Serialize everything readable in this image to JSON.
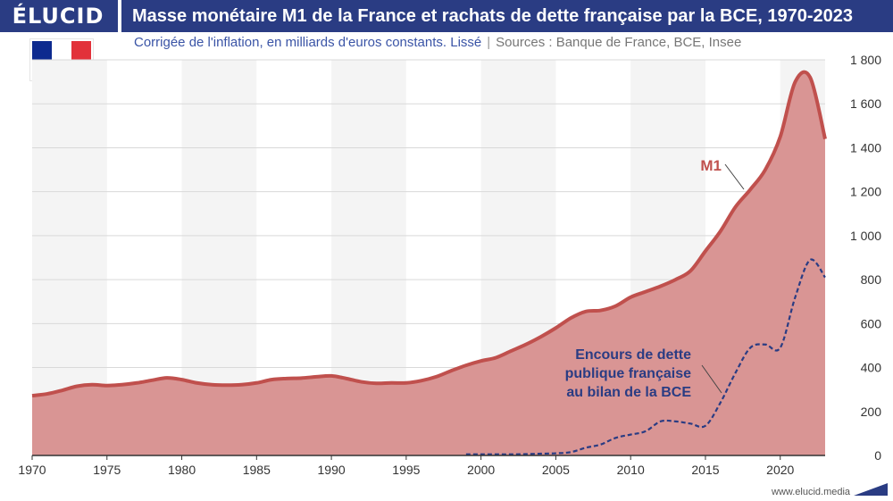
{
  "header": {
    "brand": "ÉLUCID",
    "title": "Masse monétaire M1 de la France et rachats de dette française par la BCE, 1970-2023",
    "subtitle_main": "Corrigée de l'inflation, en milliards d'euros constants. Lissé",
    "subtitle_sep": "|",
    "subtitle_sources": "Sources : Banque de France, BCE, Insee"
  },
  "footer": {
    "url": "www.elucid.media"
  },
  "colors": {
    "header_bg": "#2a3c83",
    "m1_line": "#c0504d",
    "m1_fill": "#d99594",
    "debt_line": "#2a3c83",
    "band": "#f4f4f4"
  },
  "chart_data": {
    "type": "area",
    "title": "Masse monétaire M1 de la France et rachats de dette française par la BCE, 1970-2023",
    "xlim": [
      1970,
      2023
    ],
    "ylim": [
      0,
      1800
    ],
    "x_ticks": [
      "1970",
      "1975",
      "1980",
      "1985",
      "1990",
      "1995",
      "2000",
      "2005",
      "2010",
      "2015",
      "2020"
    ],
    "y_ticks": [
      "0",
      "200",
      "400",
      "600",
      "800",
      "1 000",
      "1 200",
      "1 400",
      "1 600",
      "1 800"
    ],
    "series": [
      {
        "name": "M1",
        "label": "M1",
        "x": [
          1970,
          1971,
          1972,
          1973,
          1974,
          1975,
          1976,
          1977,
          1978,
          1979,
          1980,
          1981,
          1982,
          1983,
          1984,
          1985,
          1986,
          1987,
          1988,
          1989,
          1990,
          1991,
          1992,
          1993,
          1994,
          1995,
          1996,
          1997,
          1998,
          1999,
          2000,
          2001,
          2002,
          2003,
          2004,
          2005,
          2006,
          2007,
          2008,
          2009,
          2010,
          2011,
          2012,
          2013,
          2014,
          2015,
          2016,
          2017,
          2018,
          2019,
          2020,
          2021,
          2022,
          2023
        ],
        "values": [
          272,
          280,
          296,
          315,
          322,
          318,
          322,
          330,
          342,
          353,
          345,
          330,
          322,
          320,
          322,
          330,
          345,
          350,
          352,
          358,
          362,
          350,
          335,
          328,
          330,
          330,
          340,
          358,
          385,
          410,
          430,
          445,
          475,
          505,
          540,
          580,
          625,
          655,
          660,
          680,
          720,
          745,
          770,
          800,
          840,
          930,
          1020,
          1130,
          1210,
          1300,
          1450,
          1700,
          1720,
          1440
        ]
      },
      {
        "name": "Encours de dette publique française au bilan de la BCE",
        "label_lines": [
          "Encours de dette",
          "publique française",
          "au bilan de la BCE"
        ],
        "x": [
          1999,
          2000,
          2001,
          2002,
          2003,
          2004,
          2005,
          2006,
          2007,
          2008,
          2009,
          2010,
          2011,
          2012,
          2013,
          2014,
          2015,
          2016,
          2017,
          2018,
          2019,
          2020,
          2021,
          2022,
          2023
        ],
        "values": [
          5,
          5,
          5,
          5,
          6,
          8,
          10,
          15,
          35,
          50,
          80,
          95,
          110,
          155,
          155,
          145,
          135,
          240,
          375,
          490,
          505,
          490,
          720,
          890,
          810
        ]
      }
    ]
  }
}
